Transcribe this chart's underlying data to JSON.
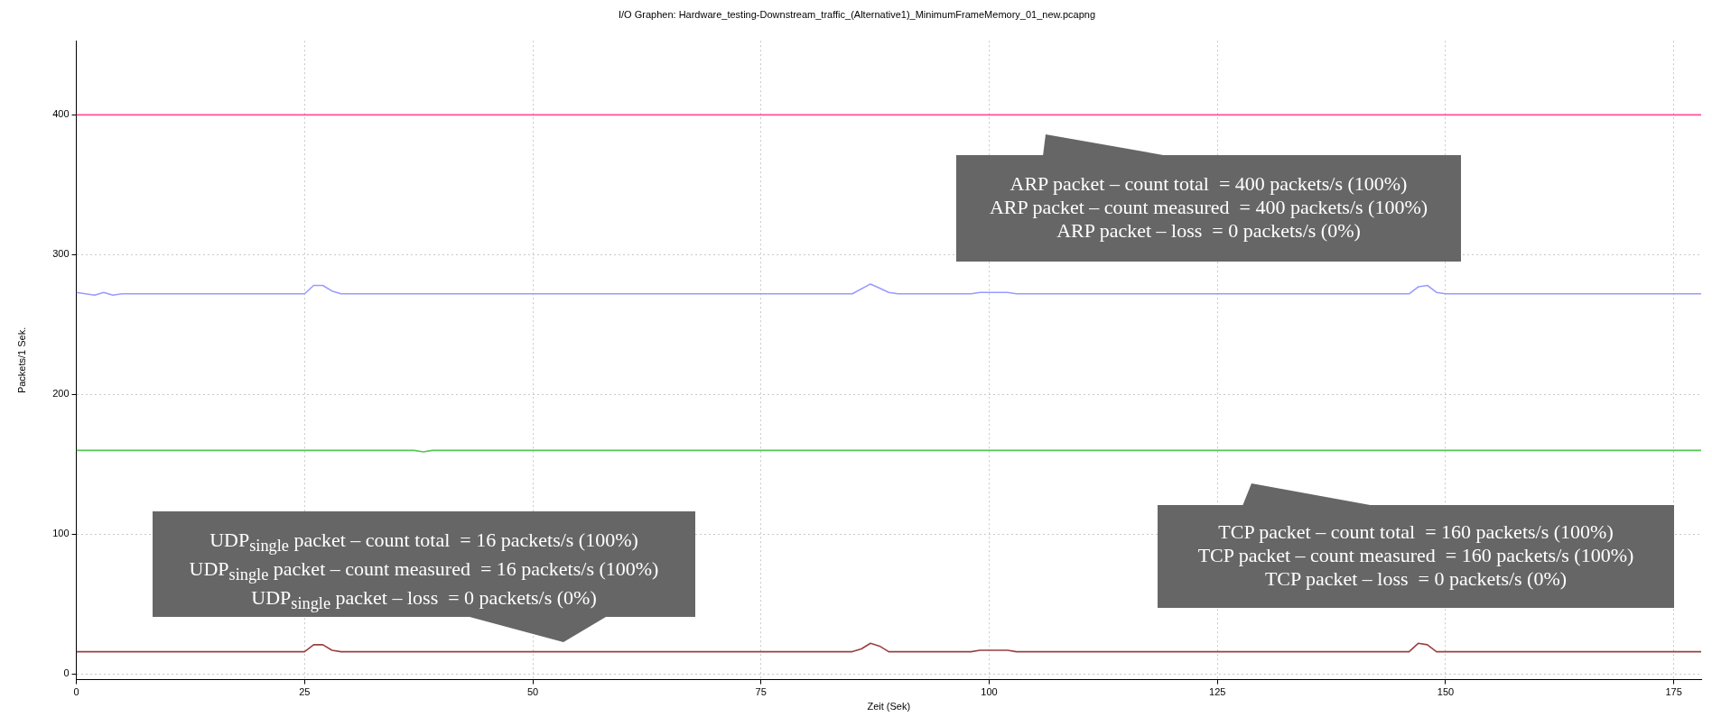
{
  "chart_data": {
    "type": "line",
    "title": "I/O Graphen: Hardware_testing-Downstream_traffic_(Alternative1)_MinimumFrameMemory_01_new.pcapng",
    "xlabel": "Zeit (Sek)",
    "ylabel": "Packets/1 Sek.",
    "xlim": [
      0,
      178
    ],
    "xticks": [
      0,
      25,
      50,
      75,
      100,
      125,
      150,
      175
    ],
    "ylim": [
      -4,
      453
    ],
    "yticks": [
      0,
      100,
      200,
      300,
      400
    ],
    "grid": true,
    "legend": false,
    "marker": "none",
    "line_style": "solid",
    "series": [
      {
        "color": "#ff4f9f",
        "x": [
          0,
          178
        ],
        "values": [
          400,
          400
        ]
      },
      {
        "color": "#9a9aff",
        "x": [
          0,
          2,
          3,
          4,
          5,
          25,
          26,
          27,
          28,
          29,
          85,
          87,
          88,
          89,
          90,
          98,
          99,
          102,
          103,
          146,
          147,
          148,
          149,
          150,
          178
        ],
        "values": [
          273,
          271,
          273,
          271,
          272,
          272,
          278,
          278,
          274,
          272,
          272,
          279,
          276,
          273,
          272,
          272,
          273,
          273,
          272,
          272,
          277,
          278,
          273,
          272,
          272
        ]
      },
      {
        "color": "#55c655",
        "x": [
          0,
          37,
          38,
          39,
          178
        ],
        "values": [
          160,
          160,
          159,
          160,
          160
        ]
      },
      {
        "color": "#994040",
        "x": [
          0,
          25,
          26,
          27,
          28,
          29,
          85,
          86,
          87,
          88,
          89,
          98,
          99,
          102,
          103,
          146,
          147,
          148,
          149,
          178
        ],
        "values": [
          16,
          16,
          21,
          21,
          17,
          16,
          16,
          18,
          22,
          20,
          16,
          16,
          17,
          17,
          16,
          16,
          22,
          21,
          16,
          16
        ]
      }
    ],
    "annotations": [
      "ARP packet – count total  = 400 packets/s (100%)\nARP packet – count measured  = 400 packets/s (100%)\nARP packet – loss  = 0 packets/s (0%)",
      "TCP packet – count total  = 160 packets/s (100%)\nTCP packet – count measured  = 160 packets/s (100%)\nTCP packet – loss  = 0 packets/s (0%)",
      "UDP$_{single}$ packet – count total  = 16 packets/s (100%)\nUDP$_{single}$ packet – count measured  = 16 packets/s (100%)\nUDP$_{single}$ packet – loss  = 0 packets/s (0%)"
    ]
  }
}
